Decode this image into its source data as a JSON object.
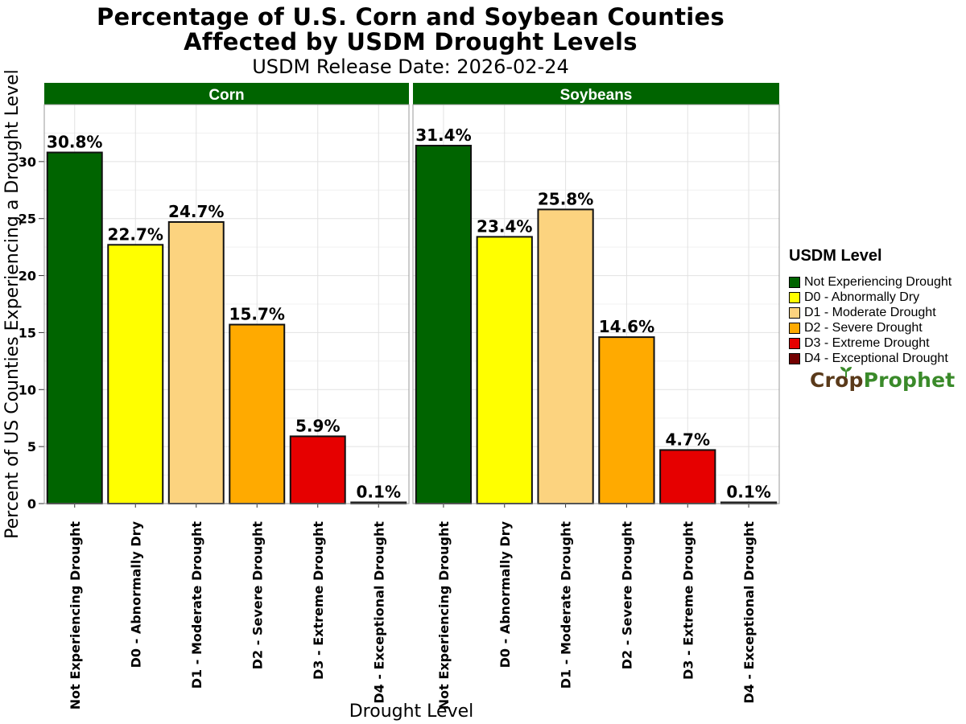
{
  "title_line1": "Percentage of U.S. Corn and Soybean Counties",
  "title_line2": "Affected by USDM Drought Levels",
  "subtitle": "USDM Release Date: 2026-02-24",
  "legend": {
    "title": "USDM Level",
    "items": [
      {
        "label": "Not Experiencing Drought",
        "color": "#006400"
      },
      {
        "label": "D0 - Abnormally Dry",
        "color": "#ffff00"
      },
      {
        "label": "D1 - Moderate Drought",
        "color": "#fcd37f"
      },
      {
        "label": "D2 - Severe Drought",
        "color": "#ffaa00"
      },
      {
        "label": "D3 - Extreme Drought",
        "color": "#e60000"
      },
      {
        "label": "D4 - Exceptional Drought",
        "color": "#730000"
      }
    ]
  },
  "logo": {
    "part1": "Crop",
    "part2": "Prophet"
  },
  "colors": {
    "strip": "#006400",
    "strip_text": "#ffffff"
  },
  "chart_data": {
    "type": "bar",
    "xlabel": "Drought Level",
    "ylabel": "Percent of US Counties Experiencing a Drought Level",
    "ylim": [
      0,
      35
    ],
    "yticks": [
      0,
      5,
      10,
      15,
      20,
      25,
      30
    ],
    "grid": true,
    "legend_position": "right",
    "categories": [
      "Not Experiencing Drought",
      "D0 - Abnormally Dry",
      "D1 - Moderate Drought",
      "D2 - Severe Drought",
      "D3 - Extreme Drought",
      "D4 - Exceptional Drought"
    ],
    "panels": [
      {
        "name": "Corn",
        "values": [
          30.8,
          22.7,
          24.7,
          15.7,
          5.9,
          0.1
        ],
        "labels": [
          "30.8%",
          "22.7%",
          "24.7%",
          "15.7%",
          "5.9%",
          "0.1%"
        ]
      },
      {
        "name": "Soybeans",
        "values": [
          31.4,
          23.4,
          25.8,
          14.6,
          4.7,
          0.1
        ],
        "labels": [
          "31.4%",
          "23.4%",
          "25.8%",
          "14.6%",
          "4.7%",
          "0.1%"
        ]
      }
    ]
  }
}
